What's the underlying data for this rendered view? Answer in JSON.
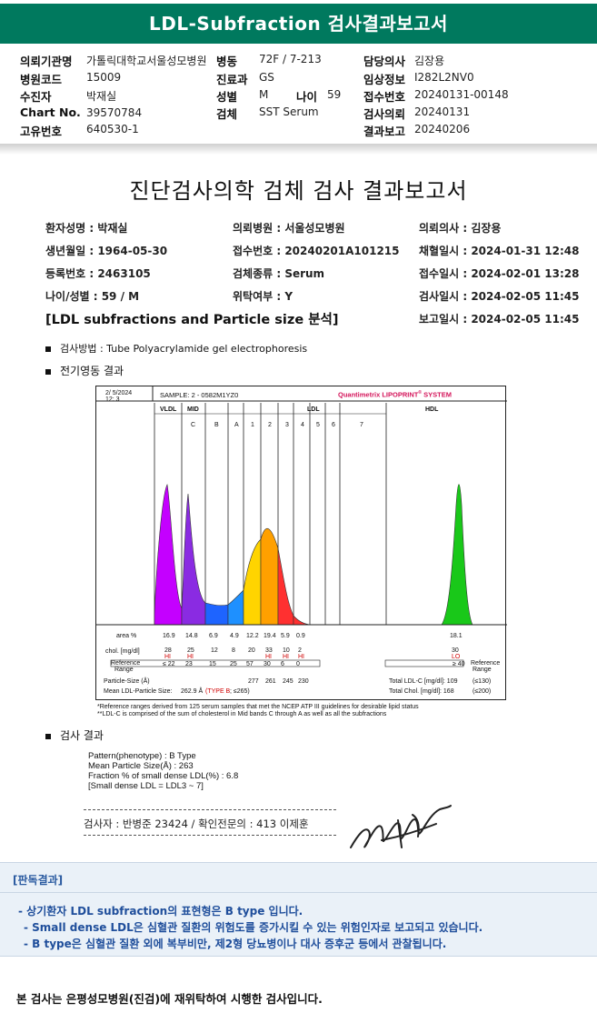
{
  "header": {
    "title": "LDL-Subfraction 검사결과보고서"
  },
  "info": {
    "col1": [
      {
        "label": "의뢰기관명",
        "value": "가톨릭대학교서울성모병원"
      },
      {
        "label": "병원코드",
        "value": "15009"
      },
      {
        "label": "수진자",
        "value": "박재실"
      },
      {
        "label": "Chart No.",
        "value": "39570784"
      },
      {
        "label": "고유번호",
        "value": "640530-1"
      }
    ],
    "col2": [
      {
        "label": "병동",
        "value": "72F / 7-213"
      },
      {
        "label": "진료과",
        "value": "GS"
      },
      {
        "label": "성별",
        "value": "M"
      },
      {
        "label": "검체",
        "value": "SST Serum"
      }
    ],
    "age": {
      "label": "나이",
      "value": "59"
    },
    "col3": [
      {
        "label": "담당의사",
        "value": "김장용"
      },
      {
        "label": "임상정보",
        "value": "I282L2NV0"
      },
      {
        "label": "접수번호",
        "value": "20240131-00148"
      },
      {
        "label": "검사의뢰",
        "value": "20240131"
      },
      {
        "label": "결과보고",
        "value": "20240206"
      }
    ]
  },
  "report": {
    "title": "진단검사의학 검체 검사 결과보고서",
    "patient_rows": [
      [
        "환자성명 : 박재실",
        "의뢰병원 : 서울성모병원",
        "의뢰의사 : 김장용"
      ],
      [
        "생년월일 : 1964-05-30",
        "접수번호 : 20240201A101215",
        "채혈일시 : 2024-01-31 12:48"
      ],
      [
        "등록번호 : 2463105",
        "검체종류 : Serum",
        "접수일시 : 2024-02-01 13:28"
      ],
      [
        "나이/성별 : 59 / M",
        "위탁여부 : Y",
        "검사일시 : 2024-02-05 11:45"
      ]
    ],
    "section_title": "[LDL subfractions and Particle size 분석]",
    "report_time": "보고일시 : 2024-02-05 11:45",
    "method": "검사방법 : Tube Polyacrylamide gel electrophoresis",
    "electro_title": "전기영동 결과",
    "result_title": "검사 결과"
  },
  "chart": {
    "date": "2/ 5/2024",
    "time": "12: 3",
    "sample": "SAMPLE:   2 - 0582M1YZ0",
    "brand": "Quantimetrix LIPOPRINT",
    "brand_mark": "®",
    "brand_tail": " SYSTEM",
    "bands": [
      "VLDL",
      "MID",
      "LDL",
      "HDL"
    ],
    "mid_sub": [
      "C",
      "B",
      "A"
    ],
    "ldl_sub": [
      "1",
      "2",
      "3",
      "4",
      "5",
      "6",
      "7"
    ],
    "row_labels": {
      "area": "area %",
      "chol": "chol. [mg/dl]",
      "ref": "Reference Range"
    },
    "area": [
      "16.9",
      "14.8",
      "6.9",
      "4.9",
      "12.2",
      "19.4",
      "5.9",
      "0.9",
      "18.1"
    ],
    "chol": [
      "28",
      "25",
      "12",
      "8",
      "20",
      "33",
      "10",
      "2",
      "30"
    ],
    "chol_flags": [
      "HI",
      "HI",
      "",
      "",
      "",
      "HI",
      "HI",
      "HI",
      "LO"
    ],
    "ref": [
      "≤ 22",
      "23",
      "15",
      "25",
      "57",
      "30",
      "6",
      "0",
      "≥ 40"
    ],
    "particle_label": "Particle-Size (Å)",
    "particle_sizes": [
      "277",
      "261",
      "245",
      "230"
    ],
    "mean_label": "Mean LDL-Particle Size:",
    "mean_value": "262.9 Å",
    "mean_type": "(TYPE B",
    "mean_tail": "; ≤265)",
    "total_ldl": "Total LDL-C [mg/dl]:  109",
    "total_ldl_ref": "(≤130)",
    "total_chol": "Total Chol. [mg/dl]:  168",
    "total_chol_ref": "(≤200)",
    "ref_label": "Reference Range",
    "note1": "*Reference ranges derived from 125 serum samples that met the NCEP ATP III guidelines for desirable lipid status",
    "note2": "**LDL-C is comprised of the sum of cholesterol in Mid bands C through A as well as all the subfractions",
    "colors": {
      "vldl": "#c400ff",
      "mid_c": "#8a2be2",
      "mid_b": "#1e64ff",
      "mid_a": "#1e90ff",
      "ldl1": "#ffd400",
      "ldl2": "#ffa000",
      "ldl3": "#ff3030",
      "hdl": "#19c819"
    }
  },
  "result": {
    "lines": [
      "Pattern(phenotype) : B Type",
      "Mean Particle Size(Å) : 263",
      "Fraction % of small dense LDL(%) : 6.8",
      "[Small dense LDL = LDL3 ~ 7]"
    ],
    "examiner": "검사자 : 반병준  23424  /  확인전문의 : 413  이제훈"
  },
  "judgment": {
    "head": "[판독결과]",
    "line1": "- 상기환자 LDL subfraction의 표현형은 B type 입니다.",
    "line2": "-   Small dense LDL은 심혈관 질환의 위험도를 증가시킬 수 있는 위험인자로 보고되고 있습니다.",
    "line3": "-   B type은 심혈관 질환 외에 복부비만, 제2형 당뇨병이나 대사 증후군 등에서 관찰됩니다."
  },
  "footer": "본 검사는 은평성모병원(진검)에 재위탁하여 시행한 검사입니다."
}
